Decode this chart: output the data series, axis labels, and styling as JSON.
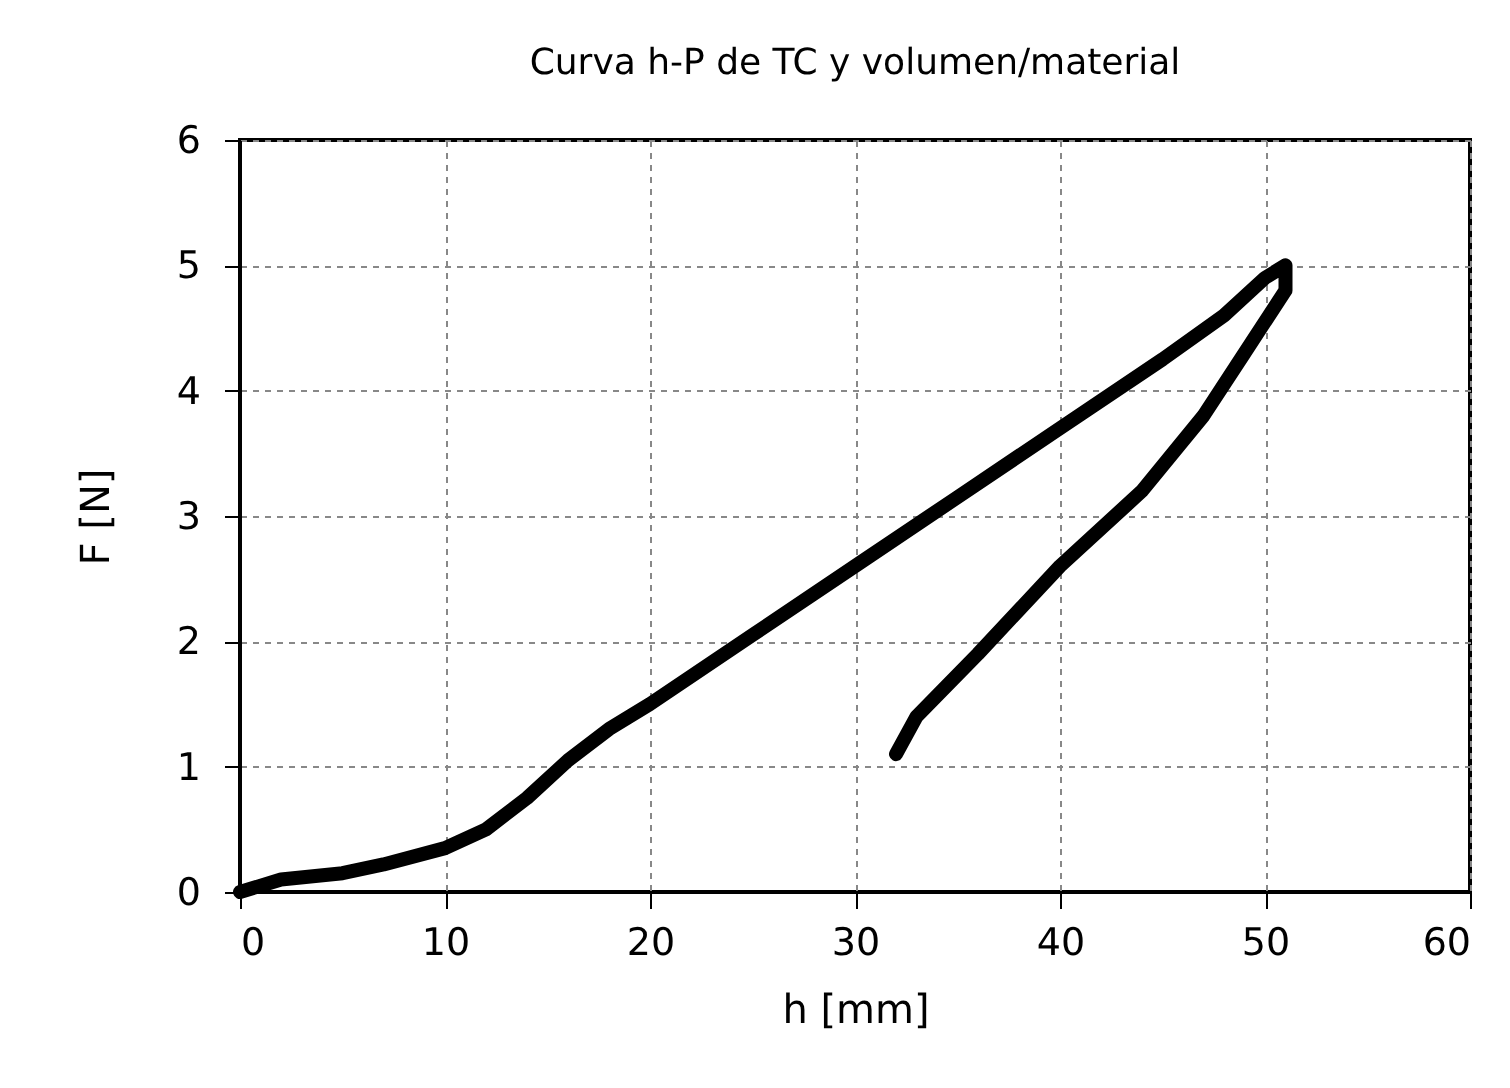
{
  "chart_data": {
    "type": "line",
    "title": "Curva h-P de TC y volumen/material",
    "xlabel": "h [mm]",
    "ylabel": "F [N]",
    "x": [
      0,
      2,
      5,
      7,
      10,
      12,
      14,
      16,
      18,
      20,
      25,
      30,
      35,
      40,
      45,
      48,
      50,
      51,
      51,
      49,
      47,
      44,
      40,
      36,
      33,
      32
    ],
    "series": [
      {
        "color": "#000000",
        "values": [
          0,
          0.1,
          0.15,
          0.22,
          0.35,
          0.5,
          0.75,
          1.05,
          1.3,
          1.5,
          2.05,
          2.6,
          3.15,
          3.7,
          4.25,
          4.6,
          4.9,
          5.0,
          4.8,
          4.3,
          3.8,
          3.2,
          2.6,
          1.9,
          1.4,
          1.1
        ]
      }
    ],
    "xlim": [
      0,
      60
    ],
    "xticks": [
      0,
      10,
      20,
      30,
      40,
      50,
      60
    ],
    "ylim": [
      0,
      6
    ],
    "yticks": [
      0,
      1,
      2,
      3,
      4,
      5,
      6
    ],
    "grid": true,
    "line_style": "solid"
  }
}
